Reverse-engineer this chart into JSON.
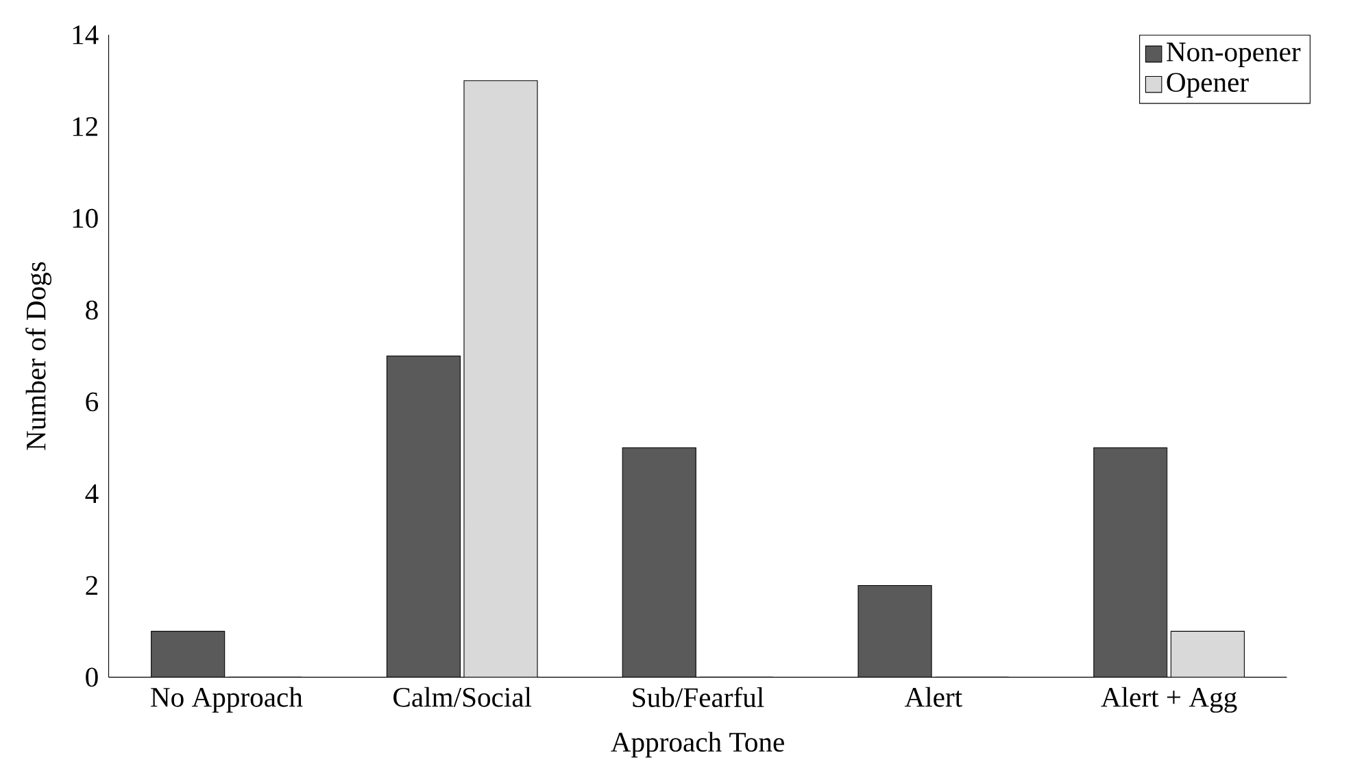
{
  "chart_data": {
    "type": "bar",
    "xlabel": "Approach Tone",
    "ylabel": "Number of Dogs",
    "categories": [
      "No Approach",
      "Calm/Social",
      "Sub/Fearful",
      "Alert",
      "Alert + Agg"
    ],
    "series": [
      {
        "name": "Non-opener",
        "color": "#5a5a5a",
        "values": [
          1,
          7,
          5,
          2,
          5
        ]
      },
      {
        "name": "Opener",
        "color": "#d9d9d9",
        "values": [
          0,
          13,
          0,
          0,
          1
        ]
      }
    ],
    "ylim": [
      0,
      14
    ],
    "yticks": [
      0,
      2,
      4,
      6,
      8,
      10,
      12,
      14
    ],
    "grid": false,
    "legend": "top right"
  }
}
